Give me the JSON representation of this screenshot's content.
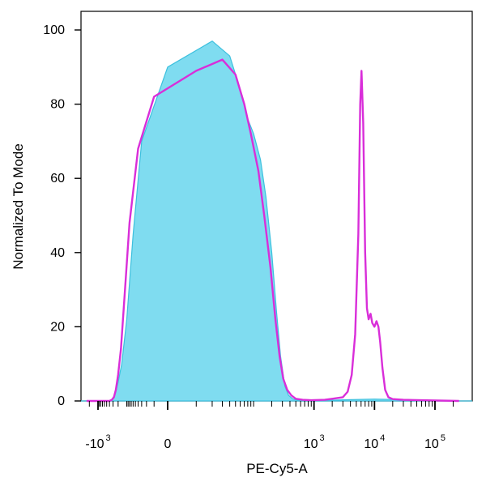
{
  "chart_data": {
    "type": "area",
    "xlabel": "PE-Cy5-A",
    "ylabel": "Normalized To Mode",
    "x_scale": "biexponential",
    "xlim": [
      -2500,
      250000
    ],
    "ylim": [
      0,
      104
    ],
    "y_ticks": [
      {
        "value": 0,
        "label": "0"
      },
      {
        "value": 20,
        "label": "20"
      },
      {
        "value": 40,
        "label": "40"
      },
      {
        "value": 60,
        "label": "60"
      },
      {
        "value": 80,
        "label": "80"
      },
      {
        "value": 100,
        "label": "100"
      }
    ],
    "x_ticks": [
      {
        "value": -1000,
        "base": "-10",
        "exp": "3"
      },
      {
        "value": 0,
        "base": "0",
        "exp": ""
      },
      {
        "value": 1000,
        "base": "10",
        "exp": "3"
      },
      {
        "value": 10000,
        "base": "10",
        "exp": "4"
      },
      {
        "value": 100000,
        "base": "10",
        "exp": "5"
      }
    ],
    "grid": false,
    "legend": "none",
    "series": [
      {
        "style": "filled",
        "color": "#7fdcf0",
        "stroke": "#3cc0de",
        "x": [
          -2500,
          -350,
          -250,
          -200,
          -150,
          -100,
          -60,
          -30,
          0,
          20,
          40,
          60,
          80,
          100,
          130,
          160,
          200,
          240,
          280,
          330,
          380,
          450,
          550,
          700,
          1000,
          3000,
          10000,
          250000
        ],
        "y": [
          0,
          0,
          2,
          5,
          10,
          22,
          45,
          70,
          90,
          97,
          93,
          84,
          76,
          72,
          65,
          55,
          40,
          24,
          12,
          4,
          1.5,
          0.5,
          0.2,
          0,
          0,
          0.3,
          0.5,
          0
        ]
      },
      {
        "style": "line",
        "color": "#d92ed9",
        "x": [
          -2500,
          -400,
          -330,
          -280,
          -240,
          -200,
          -160,
          -120,
          -80,
          -40,
          -10,
          10,
          30,
          50,
          70,
          90,
          120,
          150,
          190,
          230,
          270,
          310,
          360,
          420,
          500,
          650,
          900,
          1500,
          2000,
          3000,
          3600,
          4200,
          4800,
          5400,
          5800,
          6100,
          6500,
          7000,
          7500,
          8000,
          8600,
          9200,
          10000,
          10800,
          11600,
          12400,
          13500,
          15000,
          17000,
          20000,
          30000,
          60000,
          250000
        ],
        "y": [
          0,
          0,
          0.3,
          1,
          3,
          7,
          14,
          28,
          48,
          68,
          82,
          89,
          92,
          88,
          80,
          72,
          62,
          50,
          36,
          22,
          12,
          6,
          3,
          1.5,
          0.6,
          0.3,
          0.2,
          0.3,
          0.6,
          1,
          2.5,
          7,
          18,
          45,
          80,
          89,
          75,
          40,
          25,
          22,
          23.5,
          21,
          20,
          21.5,
          20,
          16,
          9,
          3,
          1,
          0.5,
          0.3,
          0.2,
          0
        ]
      }
    ]
  }
}
